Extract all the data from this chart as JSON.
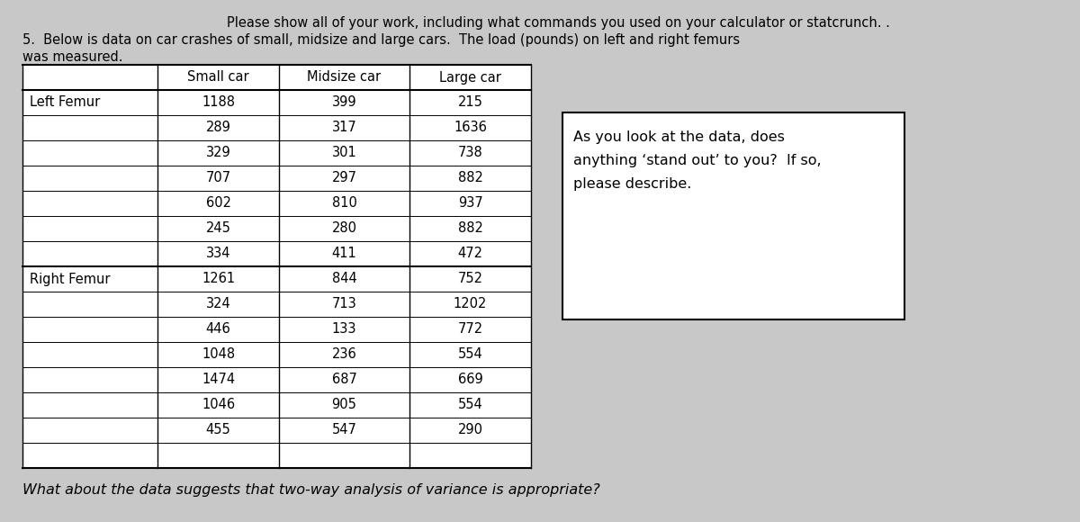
{
  "title_line1": "Please show all of your work, including what commands you used on your calculator or statcrunch. .",
  "title_line2": "5.  Below is data on car crashes of small, midsize and large cars.  The load (pounds) on left and right femurs",
  "title_line3": "was measured.",
  "col_headers": [
    "",
    "Small car",
    "Midsize car",
    "Large car"
  ],
  "row_header1": "Left Femur",
  "row_header2": "Right Femur",
  "left_femur_small": [
    1188,
    289,
    329,
    707,
    602,
    245,
    334
  ],
  "left_femur_midsize": [
    399,
    317,
    301,
    297,
    810,
    280,
    411
  ],
  "left_femur_large": [
    215,
    1636,
    738,
    882,
    937,
    882,
    472
  ],
  "right_femur_small": [
    1261,
    324,
    446,
    1048,
    1474,
    1046,
    455
  ],
  "right_femur_midsize": [
    844,
    713,
    133,
    236,
    687,
    905,
    547
  ],
  "right_femur_large": [
    752,
    1202,
    772,
    554,
    669,
    554,
    290
  ],
  "box_text_line1": "As you look at the data, does",
  "box_text_line2": "anything ‘stand out’ to you?  If so,",
  "box_text_line3": "please describe.",
  "bottom_text": "What about the data suggests that two-way analysis of variance is appropriate?",
  "bg_color": "#c8c8c8",
  "text_color": "#000000",
  "font_size_title": 10.5,
  "font_size_table": 10.5,
  "font_size_bottom": 11.5
}
